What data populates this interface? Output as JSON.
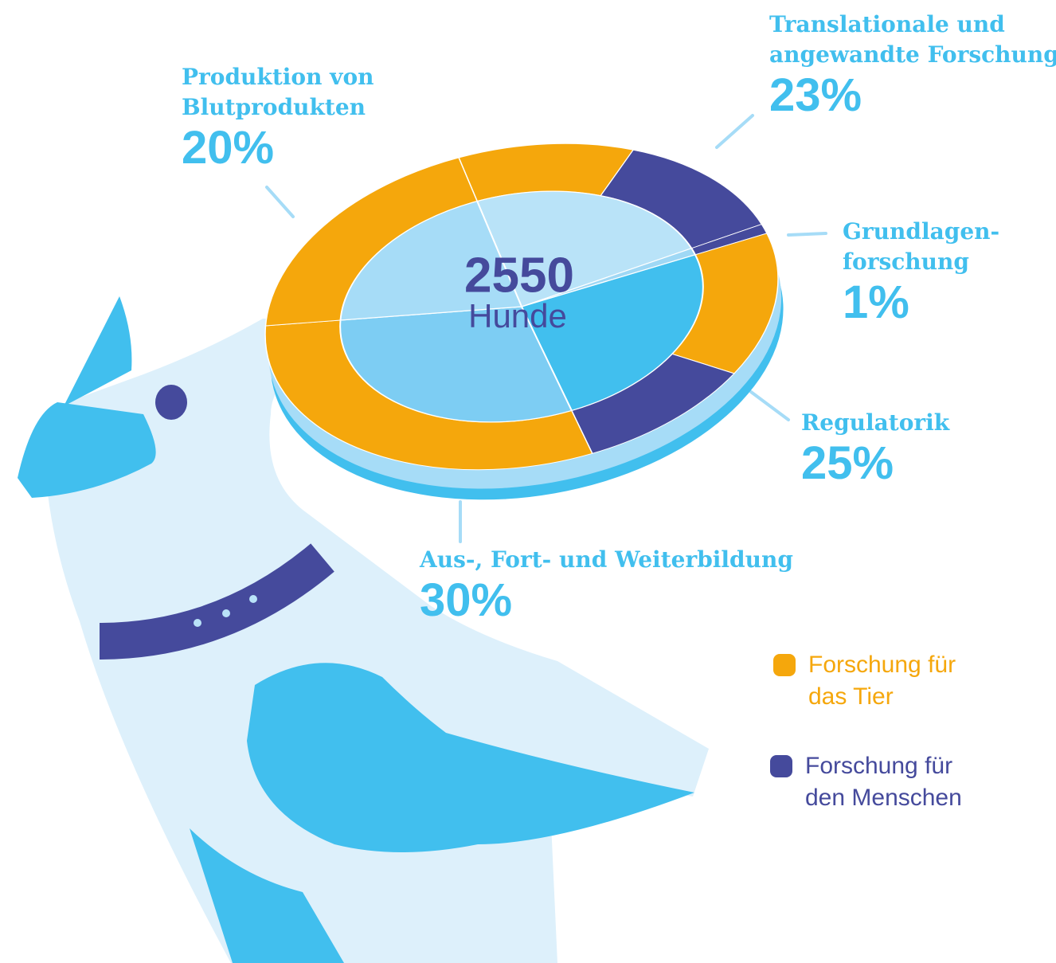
{
  "chart_data": {
    "type": "pie",
    "categories": [
      "Translationale und angewandte Forschung",
      "Grundlagen-forschung",
      "Regulatorik",
      "Aus-, Fort- und Weiterbildung",
      "Produktion von Blutprodukten"
    ],
    "values": [
      23,
      1,
      25,
      30,
      20
    ],
    "value_labels": [
      "23%",
      "1%",
      "25%",
      "30%",
      "20%"
    ],
    "colors": [
      "#b9e3f8",
      "#9fd8f5",
      "#41bfee",
      "#7dcdf3",
      "#a6dcf7"
    ],
    "center_value": "2550",
    "center_label": "Hunde",
    "series": [
      {
        "name": "Forschung für das Tier",
        "color": "#f5a70c",
        "values": [
          11,
          0,
          14,
          30,
          20
        ]
      },
      {
        "name": "Forschung für den Menschen",
        "color": "#454a9c",
        "values": [
          12,
          1,
          11,
          0,
          0
        ]
      }
    ]
  }
}
